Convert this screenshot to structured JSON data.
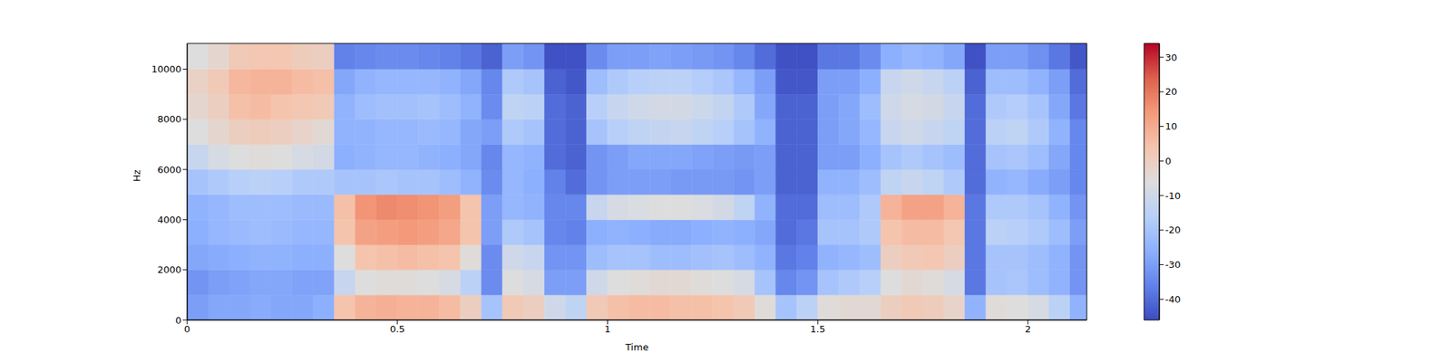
{
  "chart_data": {
    "type": "heatmap",
    "xlabel": "Time",
    "ylabel": "Hz",
    "xlim": [
      0,
      2.14
    ],
    "xticks": [
      0,
      0.5,
      1,
      1.5,
      2
    ],
    "ylim": [
      0,
      11025
    ],
    "yticks": [
      0,
      2000,
      4000,
      6000,
      8000,
      10000
    ],
    "time_edges": [
      0,
      0.05,
      0.1,
      0.15,
      0.2,
      0.25,
      0.3,
      0.35,
      0.4,
      0.45,
      0.5,
      0.55,
      0.6,
      0.65,
      0.7,
      0.75,
      0.8,
      0.85,
      0.9,
      0.95,
      1.0,
      1.05,
      1.1,
      1.15,
      1.2,
      1.25,
      1.3,
      1.35,
      1.4,
      1.45,
      1.5,
      1.55,
      1.6,
      1.65,
      1.7,
      1.75,
      1.8,
      1.85,
      1.9,
      1.95,
      2.0,
      2.05,
      2.1,
      2.14
    ],
    "freq_edges": [
      0,
      1000,
      2000,
      3000,
      4000,
      5000,
      6000,
      7000,
      8000,
      9000,
      10000,
      11025
    ],
    "cells": [
      [
        -30,
        -32,
        -28,
        -26,
        -25,
        -20,
        -12,
        -6,
        -3,
        -1,
        -6
      ],
      [
        -28,
        -30,
        -27,
        -24,
        -24,
        -18,
        -8,
        -3,
        0,
        2,
        -3
      ],
      [
        -28,
        -29,
        -26,
        -23,
        -22,
        -16,
        -6,
        0,
        5,
        7,
        2
      ],
      [
        -27,
        -28,
        -25,
        -22,
        -22,
        -15,
        -5,
        1,
        6,
        8,
        3
      ],
      [
        -28,
        -28,
        -25,
        -23,
        -22,
        -16,
        -6,
        0,
        4,
        8,
        3
      ],
      [
        -28,
        -29,
        -26,
        -24,
        -23,
        -18,
        -8,
        -2,
        3,
        6,
        1
      ],
      [
        -26,
        -29,
        -26,
        -24,
        -23,
        -18,
        -9,
        -4,
        2,
        5,
        0
      ],
      [
        4,
        -12,
        -6,
        4,
        5,
        -20,
        -26,
        -25,
        -25,
        -28,
        -36
      ],
      [
        8,
        -6,
        4,
        12,
        15,
        -20,
        -25,
        -25,
        -22,
        -25,
        -35
      ],
      [
        9,
        -5,
        5,
        13,
        17,
        -19,
        -24,
        -24,
        -21,
        -24,
        -34
      ],
      [
        8,
        -5,
        6,
        14,
        16,
        -20,
        -24,
        -24,
        -21,
        -24,
        -34
      ],
      [
        8,
        -6,
        5,
        13,
        15,
        -20,
        -25,
        -23,
        -20,
        -24,
        -35
      ],
      [
        6,
        -8,
        4,
        11,
        13,
        -22,
        -26,
        -24,
        -22,
        -25,
        -36
      ],
      [
        0,
        -15,
        -5,
        4,
        4,
        -25,
        -28,
        -28,
        -25,
        -28,
        -38
      ],
      [
        -20,
        -34,
        -34,
        -30,
        -30,
        -34,
        -35,
        -30,
        -34,
        -35,
        -42
      ],
      [
        2,
        -6,
        -10,
        -18,
        -24,
        -24,
        -24,
        -18,
        -14,
        -18,
        -30
      ],
      [
        0,
        -8,
        -12,
        -20,
        -25,
        -26,
        -25,
        -20,
        -15,
        -20,
        -32
      ],
      [
        -10,
        -30,
        -32,
        -35,
        -35,
        -36,
        -40,
        -40,
        -40,
        -42,
        -45
      ],
      [
        -14,
        -30,
        -32,
        -36,
        -35,
        -40,
        -42,
        -42,
        -42,
        -44,
        -45
      ],
      [
        2,
        -10,
        -22,
        -26,
        -12,
        -32,
        -32,
        -20,
        -16,
        -22,
        -34
      ],
      [
        5,
        -6,
        -20,
        -25,
        -8,
        -30,
        -30,
        -16,
        -12,
        -18,
        -30
      ],
      [
        6,
        -5,
        -20,
        -26,
        -7,
        -30,
        -28,
        -14,
        -10,
        -16,
        -30
      ],
      [
        6,
        -4,
        -22,
        -27,
        -6,
        -30,
        -28,
        -13,
        -9,
        -15,
        -29
      ],
      [
        5,
        -4,
        -22,
        -27,
        -6,
        -31,
        -28,
        -12,
        -9,
        -15,
        -30
      ],
      [
        5,
        -5,
        -21,
        -26,
        -7,
        -31,
        -29,
        -14,
        -11,
        -17,
        -31
      ],
      [
        4,
        -6,
        -20,
        -25,
        -9,
        -31,
        -30,
        -16,
        -13,
        -19,
        -32
      ],
      [
        2,
        -8,
        -22,
        -26,
        -14,
        -32,
        -31,
        -20,
        -18,
        -24,
        -35
      ],
      [
        -5,
        -20,
        -25,
        -28,
        -25,
        -30,
        -30,
        -25,
        -28,
        -30,
        -40
      ],
      [
        -20,
        -35,
        -38,
        -40,
        -40,
        -42,
        -42,
        -42,
        -42,
        -44,
        -45
      ],
      [
        -15,
        -32,
        -36,
        -38,
        -40,
        -42,
        -42,
        -42,
        -42,
        -44,
        -45
      ],
      [
        -5,
        -20,
        -25,
        -20,
        -22,
        -25,
        -30,
        -30,
        -30,
        -30,
        -38
      ],
      [
        -4,
        -18,
        -24,
        -20,
        -22,
        -25,
        -30,
        -28,
        -28,
        -30,
        -38
      ],
      [
        -4,
        -16,
        -22,
        -18,
        -18,
        -22,
        -26,
        -24,
        -22,
        -26,
        -34
      ],
      [
        0,
        -6,
        0,
        4,
        8,
        -14,
        -20,
        -12,
        -10,
        -12,
        -26
      ],
      [
        2,
        -4,
        2,
        6,
        12,
        -12,
        -18,
        -10,
        -8,
        -10,
        -24
      ],
      [
        1,
        -5,
        3,
        6,
        12,
        -14,
        -20,
        -12,
        -9,
        -12,
        -25
      ],
      [
        -2,
        -8,
        0,
        3,
        8,
        -18,
        -22,
        -14,
        -12,
        -15,
        -28
      ],
      [
        -25,
        -38,
        -38,
        -38,
        -38,
        -40,
        -40,
        -40,
        -40,
        -42,
        -45
      ],
      [
        -5,
        -20,
        -20,
        -15,
        -18,
        -25,
        -20,
        -15,
        -18,
        -22,
        -30
      ],
      [
        -6,
        -19,
        -20,
        -16,
        -18,
        -24,
        -19,
        -14,
        -17,
        -22,
        -30
      ],
      [
        -8,
        -22,
        -22,
        -18,
        -20,
        -27,
        -22,
        -18,
        -20,
        -25,
        -33
      ],
      [
        -15,
        -25,
        -25,
        -22,
        -25,
        -30,
        -28,
        -25,
        -28,
        -30,
        -38
      ],
      [
        -25,
        -32,
        -32,
        -30,
        -32,
        -35,
        -35,
        -35,
        -38,
        -40,
        -44
      ]
    ],
    "color_range": [
      -46,
      34
    ],
    "color_ticks": [
      -40,
      -30,
      -20,
      -10,
      0,
      10,
      20,
      30
    ]
  }
}
